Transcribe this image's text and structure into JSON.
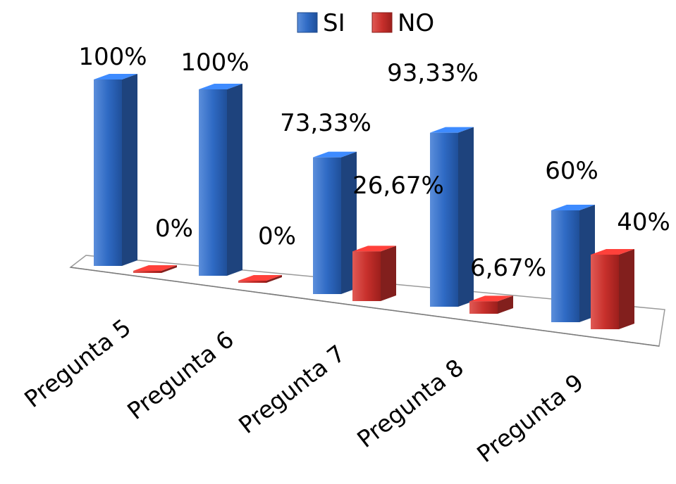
{
  "chart_data": {
    "type": "bar",
    "categories": [
      "Pregunta 5",
      "Pregunta 6",
      "Pregunta 7",
      "Pregunta 8",
      "Pregunta 9"
    ],
    "series": [
      {
        "name": "SI",
        "values": [
          100,
          100,
          73.33,
          93.33,
          60
        ],
        "labels": [
          "100%",
          "100%",
          "73,33%",
          "93,33%",
          "60%"
        ],
        "color": "#2e67c0"
      },
      {
        "name": "NO",
        "values": [
          0,
          0,
          26.67,
          6.67,
          40
        ],
        "labels": [
          "0%",
          "0%",
          "26,67%",
          "6,67%",
          "40%"
        ],
        "color": "#c8302c"
      }
    ],
    "ylim": [
      0,
      100
    ],
    "legend": "top",
    "style": "3d-clustered-column"
  }
}
